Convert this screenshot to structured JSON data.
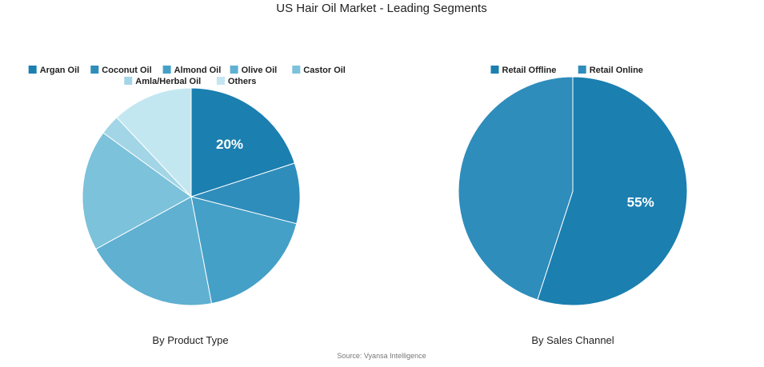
{
  "title": "US Hair Oil Market - Leading Segments",
  "source": "Source: Vyansa Intelligence",
  "chart_data": [
    {
      "type": "pie",
      "subtitle": "By Product Type",
      "categories": [
        "Argan Oil",
        "Coconut Oil",
        "Almond Oil",
        "Olive Oil",
        "Castor Oil",
        "Amla/Herbal Oil",
        "Others"
      ],
      "values": [
        20,
        9,
        18,
        20,
        18,
        3,
        12
      ],
      "colors": [
        "#1b7fb0",
        "#2e8dbb",
        "#45a0c7",
        "#5fb0d1",
        "#7cc2db",
        "#a2d5e6",
        "#c3e7f0"
      ],
      "labeled_value": "20%",
      "legend_position": "top"
    },
    {
      "type": "pie",
      "subtitle": "By Sales Channel",
      "categories": [
        "Retail Offline",
        "Retail Online"
      ],
      "values": [
        55,
        45
      ],
      "colors": [
        "#1b7fb0",
        "#2e8dbb"
      ],
      "labeled_value": "55%",
      "legend_position": "top"
    }
  ]
}
